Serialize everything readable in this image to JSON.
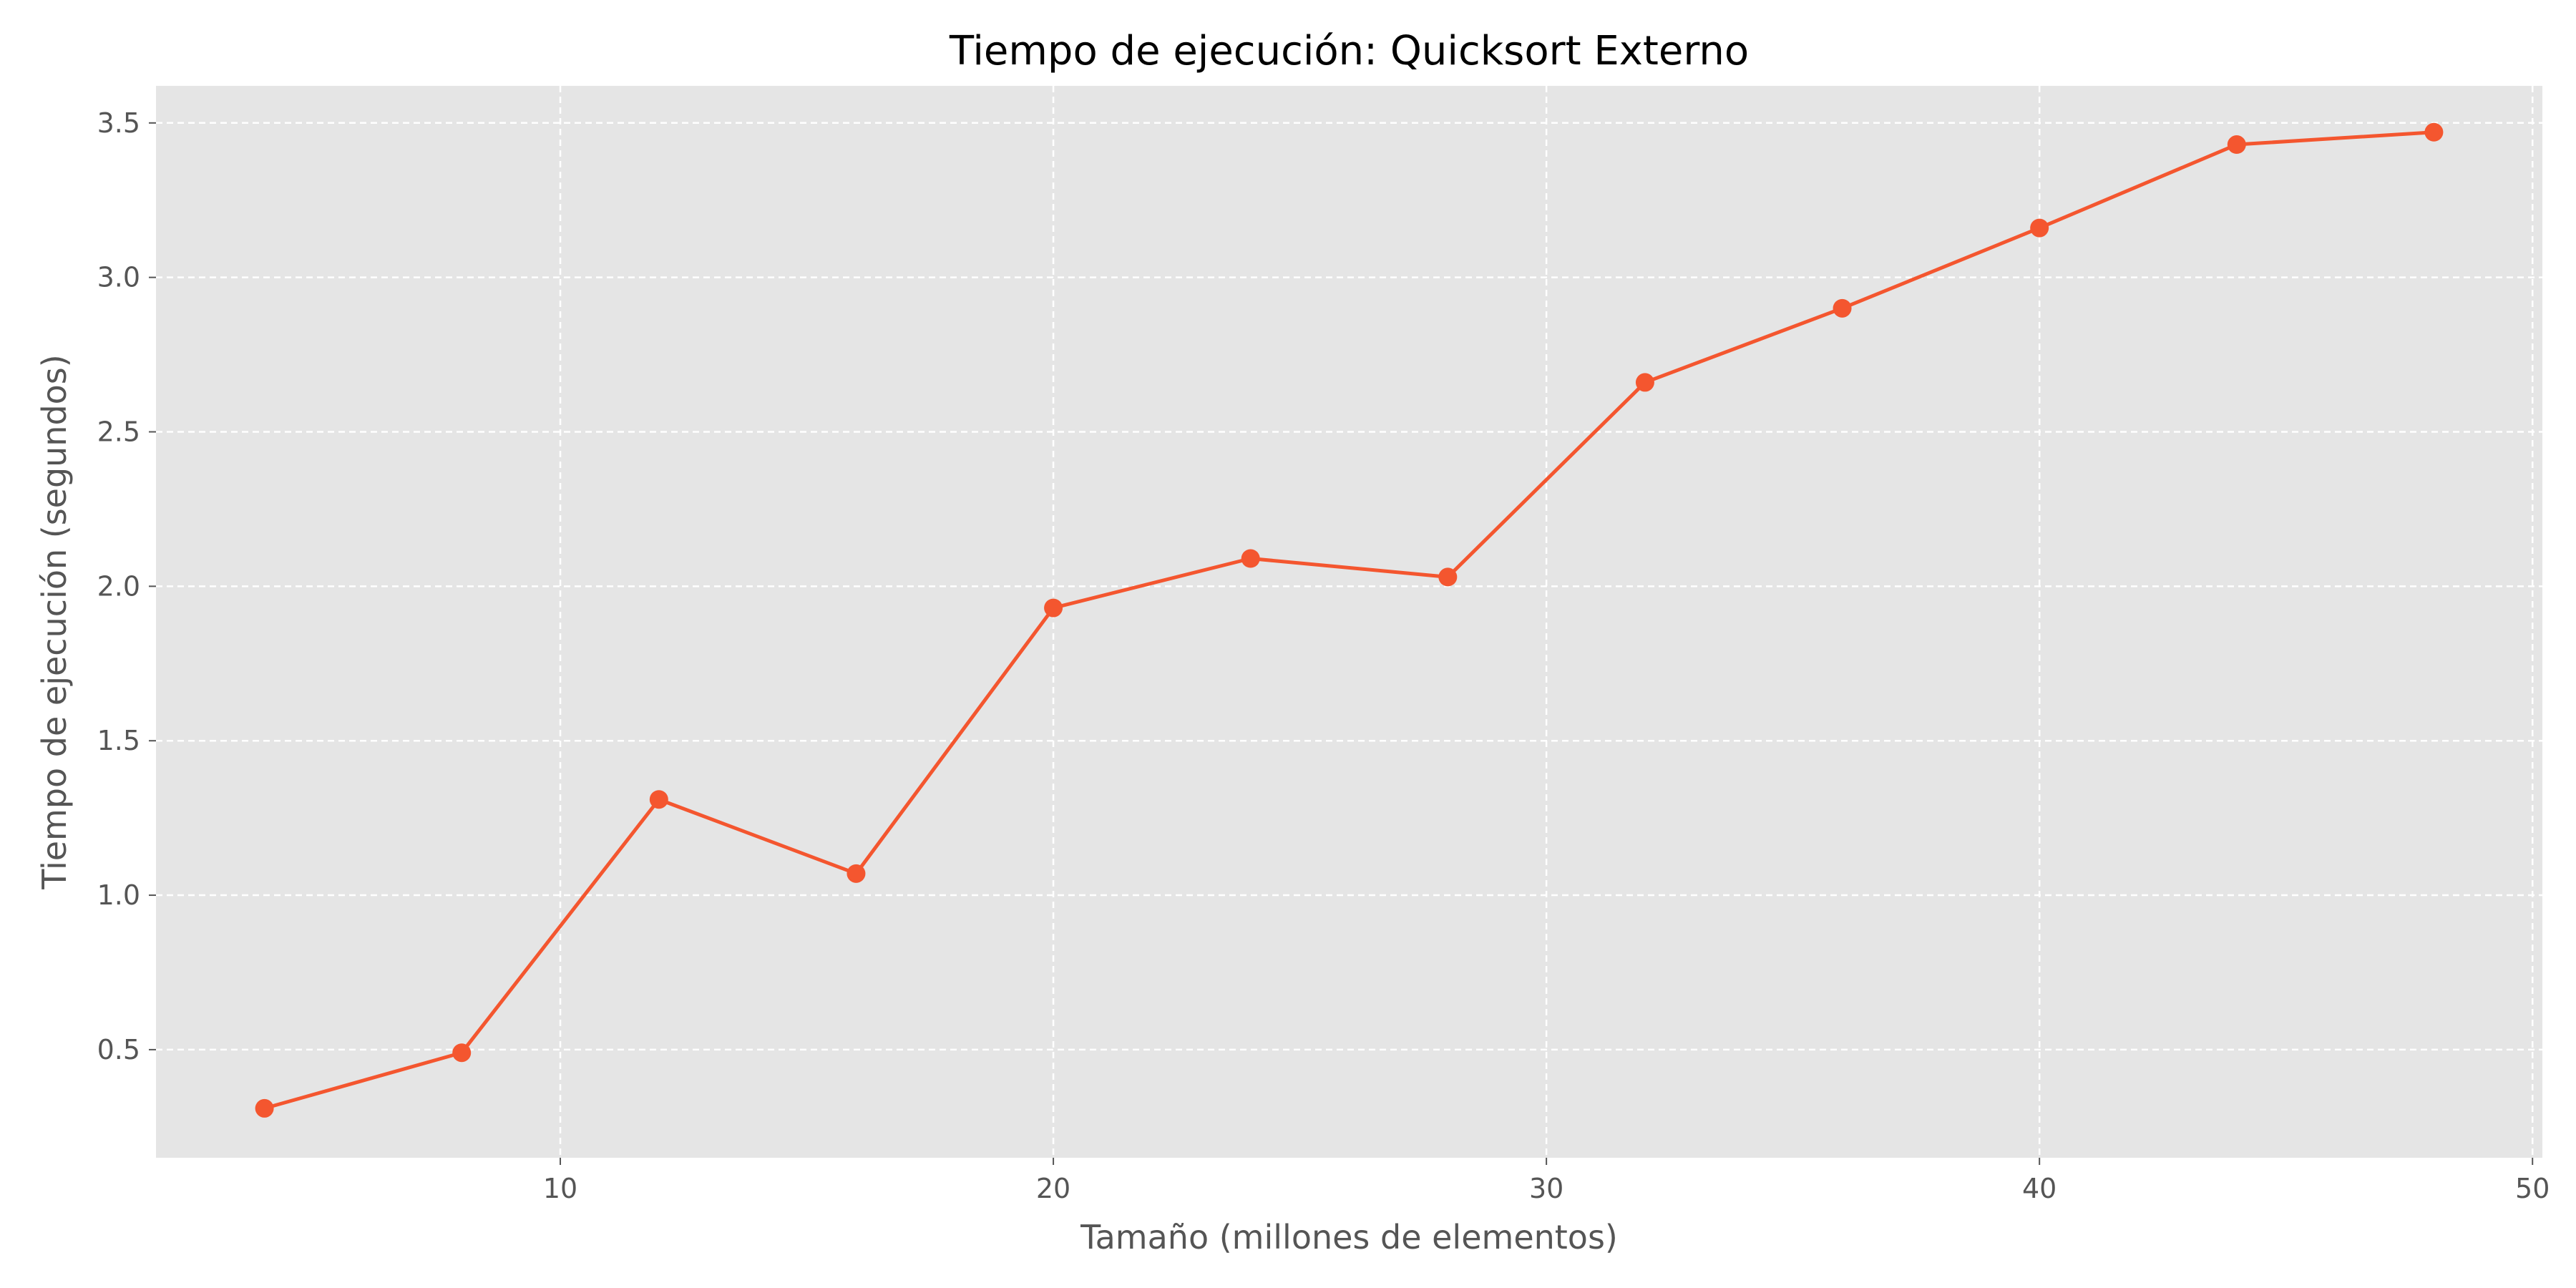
{
  "chart_data": {
    "type": "line",
    "title": "Tiempo de ejecución: Quicksort Externo",
    "xlabel": "Tamaño (millones de elementos)",
    "ylabel": "Tiempo de ejecución (segundos)",
    "xlim": [
      1.8,
      50.2
    ],
    "ylim": [
      0.15,
      3.62
    ],
    "xticks": [
      10,
      20,
      30,
      40,
      50
    ],
    "xtick_labels": [
      "10",
      "20",
      "30",
      "40",
      "50"
    ],
    "yticks": [
      0.5,
      1.0,
      1.5,
      2.0,
      2.5,
      3.0,
      3.5
    ],
    "ytick_labels": [
      "0.5",
      "1.0",
      "1.5",
      "2.0",
      "2.5",
      "3.0",
      "3.5"
    ],
    "grid": true,
    "grid_style": "dashed",
    "legend": false,
    "series": [
      {
        "x": [
          4,
          8,
          12,
          16,
          20,
          24,
          28,
          32,
          36,
          40,
          44,
          48
        ],
        "values": [
          0.31,
          0.49,
          1.31,
          1.07,
          1.93,
          2.09,
          2.03,
          2.66,
          2.9,
          3.16,
          3.43,
          3.47
        ],
        "color": "#f4562f",
        "marker": "circle"
      }
    ],
    "colors": {
      "plot_background": "#e5e5e5",
      "grid": "#ffffff",
      "tick_text": "#555555",
      "title_text": "#000000"
    }
  }
}
